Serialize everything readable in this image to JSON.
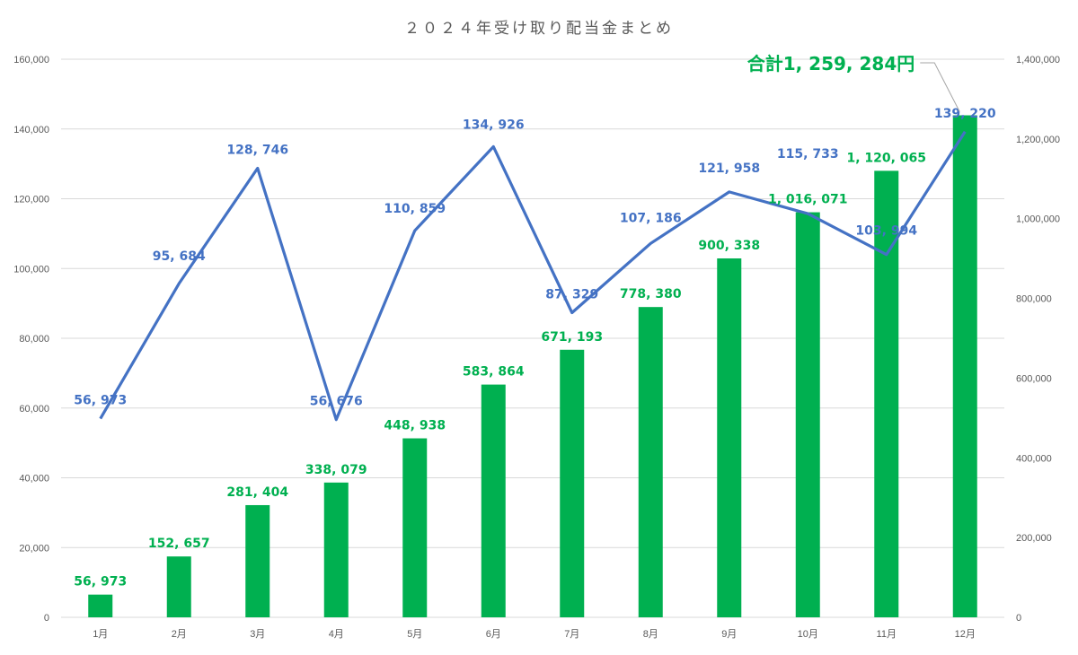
{
  "chart_data": {
    "type": "bar+line",
    "title": "２０２４年受け取り配当金まとめ",
    "categories": [
      "1月",
      "2月",
      "3月",
      "4月",
      "5月",
      "6月",
      "7月",
      "8月",
      "9月",
      "10月",
      "11月",
      "12月"
    ],
    "series": [
      {
        "axis": "right",
        "kind": "bar",
        "color": "#00b050",
        "values": [
          56973,
          152657,
          281404,
          338079,
          448938,
          583864,
          671193,
          778380,
          900338,
          1016071,
          1120065,
          1259284
        ],
        "labels": [
          "56, 973",
          "152, 657",
          "281, 404",
          "338, 079",
          "448, 938",
          "583, 864",
          "671, 193",
          "778, 380",
          "900, 338",
          "1, 016, 071",
          "1, 120, 065",
          ""
        ]
      },
      {
        "axis": "left",
        "kind": "line",
        "color": "#4472c4",
        "values": [
          56973,
          95684,
          128746,
          56676,
          110859,
          134926,
          87329,
          107186,
          121958,
          115733,
          103994,
          139220
        ],
        "labels": [
          "56, 973",
          "95, 684",
          "128, 746",
          "56, 676",
          "110, 859",
          "134, 926",
          "87, 329",
          "107, 186",
          "121, 958",
          "115, 733",
          "103, 994",
          "139, 220"
        ]
      }
    ],
    "left_axis": {
      "min": 0,
      "max": 160000,
      "step": 20000,
      "ticks": [
        "0",
        "20,000",
        "40,000",
        "60,000",
        "80,000",
        "100,000",
        "120,000",
        "140,000",
        "160,000"
      ]
    },
    "right_axis": {
      "min": 0,
      "max": 1400000,
      "step": 200000,
      "ticks": [
        "0",
        "200,000",
        "400,000",
        "600,000",
        "800,000",
        "1,000,000",
        "1,200,000",
        "1,400,000"
      ]
    },
    "grid": true,
    "legend": "none",
    "annotation": {
      "text": "合計1, 259, 284円",
      "color": "#00b050",
      "target_index": 11
    }
  }
}
